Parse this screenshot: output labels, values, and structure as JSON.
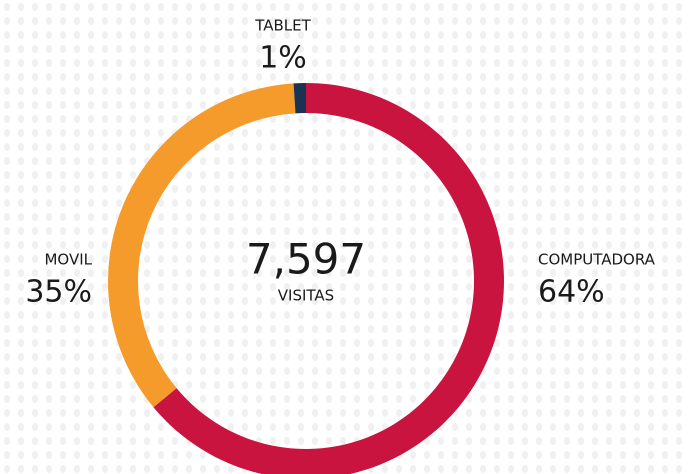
{
  "chart_data": {
    "type": "donut",
    "categories": [
      "COMPUTADORA",
      "MOVIL",
      "TABLET"
    ],
    "values": [
      64,
      35,
      1
    ],
    "value_labels": [
      "64%",
      "35%",
      "1%"
    ],
    "colors": [
      "#c8143f",
      "#f59b2b",
      "#1b3252"
    ],
    "center_text": "7,597",
    "center_subtitle": "VISITAS"
  }
}
